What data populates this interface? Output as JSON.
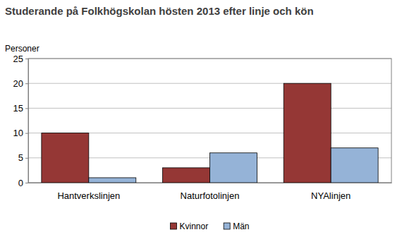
{
  "chart_data": {
    "type": "bar",
    "title": "Studerande på Folkhögskolan hösten 2013 efter linje och kön",
    "y_label": "Personer",
    "categories": [
      "Hantverkslinjen",
      "Naturfotolinjen",
      "NYAlinjen"
    ],
    "series": [
      {
        "name": "Kvinnor",
        "color": "#953735",
        "values": [
          10,
          3,
          20
        ]
      },
      {
        "name": "Män",
        "color": "#95b3d7",
        "values": [
          1,
          6,
          7
        ]
      }
    ],
    "ylim": [
      0,
      25
    ],
    "yticks": [
      0,
      5,
      10,
      15,
      20,
      25
    ],
    "grid": true,
    "legend": "bottom"
  }
}
